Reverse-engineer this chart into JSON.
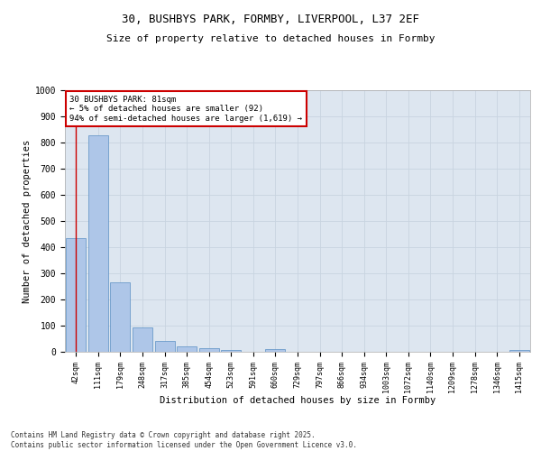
{
  "title_line1": "30, BUSHBYS PARK, FORMBY, LIVERPOOL, L37 2EF",
  "title_line2": "Size of property relative to detached houses in Formby",
  "xlabel": "Distribution of detached houses by size in Formby",
  "ylabel": "Number of detached properties",
  "categories": [
    "42sqm",
    "111sqm",
    "179sqm",
    "248sqm",
    "317sqm",
    "385sqm",
    "454sqm",
    "523sqm",
    "591sqm",
    "660sqm",
    "729sqm",
    "797sqm",
    "866sqm",
    "934sqm",
    "1003sqm",
    "1072sqm",
    "1140sqm",
    "1209sqm",
    "1278sqm",
    "1346sqm",
    "1415sqm"
  ],
  "values": [
    435,
    828,
    265,
    93,
    42,
    20,
    14,
    8,
    0,
    9,
    1,
    0,
    0,
    0,
    0,
    0,
    0,
    0,
    0,
    0,
    8
  ],
  "bar_color": "#aec6e8",
  "bar_edge_color": "#5a8fc4",
  "annotation_box_color": "#cc0000",
  "annotation_text_line1": "30 BUSHBYS PARK: 81sqm",
  "annotation_text_line2": "← 5% of detached houses are smaller (92)",
  "annotation_text_line3": "94% of semi-detached houses are larger (1,619) →",
  "ylim": [
    0,
    1000
  ],
  "yticks": [
    0,
    100,
    200,
    300,
    400,
    500,
    600,
    700,
    800,
    900,
    1000
  ],
  "grid_color": "#c8d4e0",
  "bg_color": "#dde6f0",
  "footer_line1": "Contains HM Land Registry data © Crown copyright and database right 2025.",
  "footer_line2": "Contains public sector information licensed under the Open Government Licence v3.0.",
  "marker_line_color": "#cc0000"
}
